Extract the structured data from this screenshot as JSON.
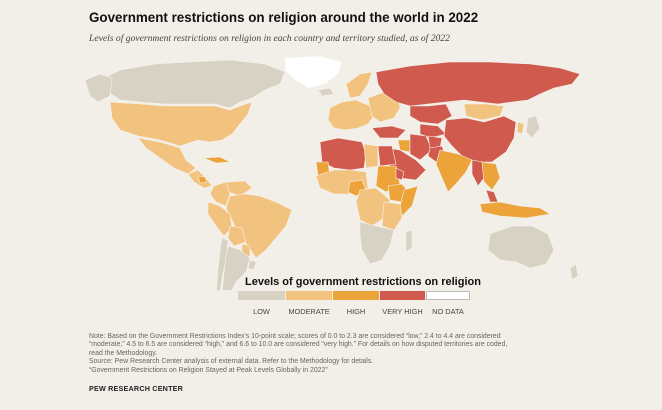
{
  "title": "Government restrictions on religion around the world in 2022",
  "subtitle": "Levels of government restrictions on religion in each country and territory studied, as of 2022",
  "legend": {
    "title": "Levels of government restrictions on religion",
    "items": [
      {
        "label": "LOW",
        "color": "#d8d2c4"
      },
      {
        "label": "MODERATE",
        "color": "#f2c27f"
      },
      {
        "label": "HIGH",
        "color": "#eca33a"
      },
      {
        "label": "VERY HIGH",
        "color": "#cf5a4d"
      },
      {
        "label": "NO DATA",
        "color": "#ffffff"
      }
    ]
  },
  "regions": [
    {
      "name": "Canada",
      "level": "LOW"
    },
    {
      "name": "Alaska",
      "level": "LOW"
    },
    {
      "name": "Greenland",
      "level": "NO DATA"
    },
    {
      "name": "United States",
      "level": "MODERATE"
    },
    {
      "name": "Mexico",
      "level": "MODERATE"
    },
    {
      "name": "Central America",
      "level": "MODERATE"
    },
    {
      "name": "Cuba",
      "level": "HIGH"
    },
    {
      "name": "Nicaragua",
      "level": "HIGH"
    },
    {
      "name": "Venezuela",
      "level": "MODERATE"
    },
    {
      "name": "Colombia",
      "level": "MODERATE"
    },
    {
      "name": "Brazil",
      "level": "MODERATE"
    },
    {
      "name": "Peru",
      "level": "MODERATE"
    },
    {
      "name": "Bolivia",
      "level": "MODERATE"
    },
    {
      "name": "Paraguay",
      "level": "MODERATE"
    },
    {
      "name": "Argentina",
      "level": "LOW"
    },
    {
      "name": "Chile",
      "level": "LOW"
    },
    {
      "name": "Uruguay",
      "level": "LOW"
    },
    {
      "name": "Iceland",
      "level": "LOW"
    },
    {
      "name": "Norway",
      "level": "MODERATE"
    },
    {
      "name": "Western Europe",
      "level": "MODERATE"
    },
    {
      "name": "Eastern Europe",
      "level": "MODERATE"
    },
    {
      "name": "Russia",
      "level": "VERY HIGH"
    },
    {
      "name": "Kazakhstan",
      "level": "VERY HIGH"
    },
    {
      "name": "Central Asia",
      "level": "VERY HIGH"
    },
    {
      "name": "Mongolia",
      "level": "MODERATE"
    },
    {
      "name": "China",
      "level": "VERY HIGH"
    },
    {
      "name": "Turkey",
      "level": "VERY HIGH"
    },
    {
      "name": "Iran",
      "level": "VERY HIGH"
    },
    {
      "name": "Afghanistan",
      "level": "VERY HIGH"
    },
    {
      "name": "Pakistan",
      "level": "VERY HIGH"
    },
    {
      "name": "India",
      "level": "HIGH"
    },
    {
      "name": "Myanmar",
      "level": "VERY HIGH"
    },
    {
      "name": "Southeast Asia",
      "level": "HIGH"
    },
    {
      "name": "Malaysia",
      "level": "VERY HIGH"
    },
    {
      "name": "Indonesia",
      "level": "HIGH"
    },
    {
      "name": "Japan",
      "level": "LOW"
    },
    {
      "name": "Korea",
      "level": "MODERATE"
    },
    {
      "name": "North Africa",
      "level": "VERY HIGH"
    },
    {
      "name": "Libya",
      "level": "MODERATE"
    },
    {
      "name": "Egypt",
      "level": "VERY HIGH"
    },
    {
      "name": "Arabian Peninsula",
      "level": "VERY HIGH"
    },
    {
      "name": "Iraq",
      "level": "HIGH"
    },
    {
      "name": "Mauritania",
      "level": "HIGH"
    },
    {
      "name": "West Africa",
      "level": "MODERATE"
    },
    {
      "name": "Nigeria",
      "level": "HIGH"
    },
    {
      "name": "Central Africa",
      "level": "MODERATE"
    },
    {
      "name": "Sudan",
      "level": "HIGH"
    },
    {
      "name": "Ethiopia",
      "level": "HIGH"
    },
    {
      "name": "Eritrea",
      "level": "VERY HIGH"
    },
    {
      "name": "Somalia",
      "level": "HIGH"
    },
    {
      "name": "East Africa",
      "level": "MODERATE"
    },
    {
      "name": "Southern Africa",
      "level": "LOW"
    },
    {
      "name": "Madagascar",
      "level": "LOW"
    },
    {
      "name": "Australia",
      "level": "LOW"
    },
    {
      "name": "New Zealand",
      "level": "LOW"
    }
  ],
  "note_lines": [
    "Note: Based on the Government Restrictions Index's 10-point scale; scores of 0.0 to 2.3 are considered “low,” 2.4 to 4.4 are considered",
    "“moderate,” 4.5 to 6.5 are considered “high,” and 6.6 to 10.0 are considered “very high.” For details on how disputed territories are coded,",
    "read the Methodology.",
    "Source: Pew Research Center analysis of external data. Refer to the Methodology for details.",
    "“Government Restrictions on Religion Stayed at Peak Levels Globally in 2022”"
  ],
  "logo": "PEW RESEARCH CENTER"
}
